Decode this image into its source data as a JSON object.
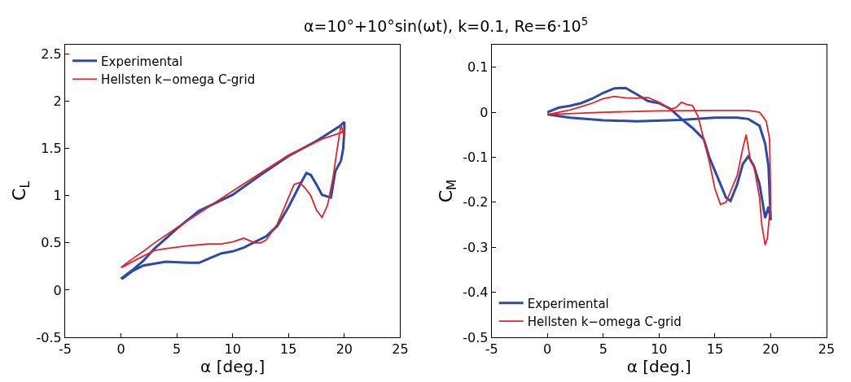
{
  "chart_data": [
    {
      "type": "line",
      "title": "α=10°+10°sin(ωt), k=0.1, Re=6·10$^{5}$",
      "xlabel": "α [deg.]",
      "ylabel": "C$_{L}$",
      "xlim": [
        -5,
        25
      ],
      "xticks": [
        -5,
        0,
        5,
        10,
        15,
        20,
        25
      ],
      "ylim": [
        -0.5,
        2.6
      ],
      "yticks": [
        -0.5,
        0,
        0.5,
        1,
        1.5,
        2,
        2.5
      ],
      "legend": "top left",
      "marker": "none",
      "line_style": "solid",
      "series": [
        {
          "name": "Experimental",
          "color": "#2b4aa8",
          "x": [
            0,
            1,
            2,
            3,
            5,
            7,
            10,
            12.5,
            15,
            17.5,
            19.5,
            20,
            20,
            19.9,
            19.7,
            19.2,
            18.8,
            18,
            17.5,
            17,
            16.6,
            16,
            15,
            14,
            13,
            12,
            11,
            10,
            9,
            8,
            7,
            6,
            4,
            2,
            1,
            0.1
          ],
          "values": [
            0.12,
            0.21,
            0.31,
            0.44,
            0.65,
            0.84,
            1.01,
            1.22,
            1.42,
            1.58,
            1.73,
            1.78,
            1.7,
            1.5,
            1.37,
            1.26,
            0.98,
            1.01,
            1.12,
            1.22,
            1.24,
            1.11,
            0.88,
            0.68,
            0.57,
            0.51,
            0.45,
            0.41,
            0.39,
            0.34,
            0.29,
            0.29,
            0.3,
            0.26,
            0.2,
            0.12
          ]
        },
        {
          "name": "Hellsten k−omega C-grid",
          "color": "#e8202a",
          "x": [
            0,
            1,
            2,
            3,
            5,
            10,
            15,
            18,
            20,
            20,
            19.7,
            19.3,
            19,
            18.5,
            18,
            17.5,
            17,
            16.5,
            16,
            15.5,
            15,
            14,
            13,
            12.5,
            12,
            11,
            10,
            9,
            8,
            6,
            4,
            3,
            2,
            1,
            0.1
          ],
          "values": [
            0.24,
            0.33,
            0.41,
            0.5,
            0.66,
            1.05,
            1.43,
            1.6,
            1.68,
            1.62,
            1.75,
            1.45,
            1.2,
            0.9,
            0.77,
            0.85,
            1.0,
            1.08,
            1.14,
            1.12,
            0.98,
            0.7,
            0.53,
            0.5,
            0.5,
            0.55,
            0.51,
            0.49,
            0.49,
            0.47,
            0.44,
            0.42,
            0.36,
            0.3,
            0.24
          ]
        }
      ]
    },
    {
      "type": "line",
      "xlabel": "α [deg.]",
      "ylabel": "C$_{M}$",
      "xlim": [
        -5,
        25
      ],
      "xticks": [
        -5,
        0,
        5,
        10,
        15,
        20,
        25
      ],
      "ylim": [
        -0.5,
        0.15
      ],
      "yticks": [
        -0.5,
        -0.4,
        -0.3,
        -0.2,
        -0.1,
        0,
        0.1
      ],
      "legend": "bottom left",
      "marker": "none",
      "line_style": "solid",
      "series": [
        {
          "name": "Experimental",
          "color": "#2b4aa8",
          "x": [
            0,
            2,
            5,
            8,
            12,
            15,
            17,
            18,
            19,
            19.5,
            19.8,
            20,
            19.8,
            19.5,
            19,
            18.5,
            18,
            17.5,
            17,
            16.4,
            16,
            15.5,
            15,
            14.5,
            14,
            13,
            12,
            11,
            10,
            9,
            8,
            7,
            6,
            5,
            4,
            3,
            2,
            1,
            0
          ],
          "values": [
            -0.005,
            -0.012,
            -0.018,
            -0.02,
            -0.017,
            -0.012,
            -0.012,
            -0.015,
            -0.03,
            -0.07,
            -0.12,
            -0.24,
            -0.21,
            -0.235,
            -0.16,
            -0.12,
            -0.098,
            -0.115,
            -0.16,
            -0.197,
            -0.19,
            -0.16,
            -0.13,
            -0.1,
            -0.06,
            -0.035,
            -0.015,
            0.008,
            0.02,
            0.025,
            0.04,
            0.054,
            0.053,
            0.043,
            0.03,
            0.02,
            0.014,
            0.01,
            0.0
          ]
        },
        {
          "name": "Hellsten k−omega C-grid",
          "color": "#e8202a",
          "x": [
            0,
            5,
            10,
            15,
            18,
            19,
            19.6,
            19.9,
            20,
            19.7,
            19.5,
            19.2,
            19,
            18.5,
            18.2,
            17.8,
            17.5,
            17,
            16.5,
            16,
            15.5,
            15,
            14.5,
            14,
            13.5,
            13,
            12.5,
            12,
            11.5,
            11,
            10,
            9,
            8,
            7,
            6,
            5,
            4,
            3,
            2,
            1,
            0.1
          ],
          "values": [
            -0.005,
            0.0,
            0.003,
            0.004,
            0.004,
            0.0,
            -0.02,
            -0.06,
            -0.2,
            -0.28,
            -0.295,
            -0.25,
            -0.19,
            -0.12,
            -0.11,
            -0.05,
            -0.08,
            -0.14,
            -0.17,
            -0.2,
            -0.205,
            -0.17,
            -0.11,
            -0.06,
            -0.01,
            0.015,
            0.017,
            0.022,
            0.01,
            0.007,
            0.022,
            0.033,
            0.031,
            0.032,
            0.035,
            0.03,
            0.02,
            0.012,
            0.005,
            0.0,
            -0.005
          ]
        }
      ]
    }
  ]
}
